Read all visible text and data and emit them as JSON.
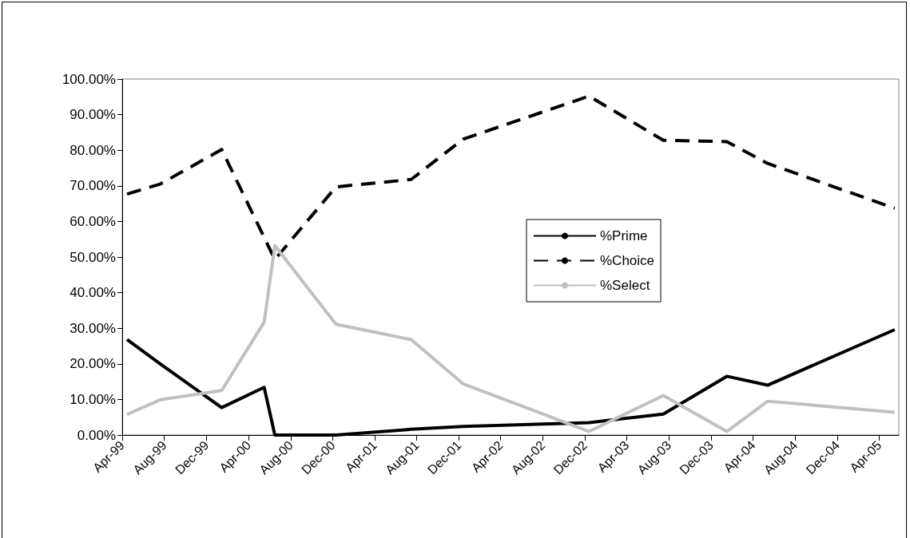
{
  "chart_data": {
    "type": "line",
    "x": [
      "1999-04-15",
      "1999-07-20",
      "2000-01-14",
      "2000-05-16",
      "2000-06-16",
      "2000-12-10",
      "2001-07-16",
      "2001-12-13",
      "2002-12-13",
      "2003-07-16",
      "2004-01-16",
      "2004-05-13",
      "2005-05-16"
    ],
    "series": [
      {
        "name": "%Prime",
        "color": "#000000",
        "line_style": "solid",
        "values": [
          26.8,
          20.0,
          7.7,
          13.4,
          0,
          0,
          1.6,
          2.4,
          3.5,
          5.9,
          16.5,
          14.0,
          29.6
        ]
      },
      {
        "name": "%Choice",
        "color": "#000000",
        "line_style": "dashed",
        "values": [
          67.7,
          70.5,
          80.2,
          55.5,
          49.3,
          69.7,
          71.8,
          83.1,
          95.2,
          82.8,
          82.4,
          76.3,
          63.7
        ]
      },
      {
        "name": "%Select",
        "color": "#c0c0c0",
        "line_style": "solid",
        "values": [
          5.8,
          9.9,
          12.5,
          31.7,
          53.2,
          31.1,
          26.8,
          14.4,
          1.0,
          11.1,
          1.0,
          9.5,
          6.4
        ]
      }
    ],
    "xlim": [
      "1999-04-01",
      "2005-05-28"
    ],
    "xticks": [
      {
        "value": "1999-04-01",
        "label": "Apr-99"
      },
      {
        "value": "1999-08-01",
        "label": "Aug-99"
      },
      {
        "value": "1999-12-01",
        "label": "Dec-99"
      },
      {
        "value": "2000-04-01",
        "label": "Apr-00"
      },
      {
        "value": "2000-08-01",
        "label": "Aug-00"
      },
      {
        "value": "2000-12-01",
        "label": "Dec-00"
      },
      {
        "value": "2001-04-01",
        "label": "Apr-01"
      },
      {
        "value": "2001-08-01",
        "label": "Aug-01"
      },
      {
        "value": "2001-12-01",
        "label": "Dec-01"
      },
      {
        "value": "2002-04-01",
        "label": "Apr-02"
      },
      {
        "value": "2002-08-01",
        "label": "Aug-02"
      },
      {
        "value": "2002-12-01",
        "label": "Dec-02"
      },
      {
        "value": "2003-04-01",
        "label": "Apr-03"
      },
      {
        "value": "2003-08-01",
        "label": "Aug-03"
      },
      {
        "value": "2003-12-01",
        "label": "Dec-03"
      },
      {
        "value": "2004-04-01",
        "label": "Apr-04"
      },
      {
        "value": "2004-08-01",
        "label": "Aug-04"
      },
      {
        "value": "2004-12-01",
        "label": "Dec-04"
      },
      {
        "value": "2005-04-01",
        "label": "Apr-05"
      }
    ],
    "ylim": [
      0,
      100
    ],
    "yticks": [
      {
        "value": 0,
        "label": "0.00%"
      },
      {
        "value": 10,
        "label": "10.00%"
      },
      {
        "value": 20,
        "label": "20.00%"
      },
      {
        "value": 30,
        "label": "30.00%"
      },
      {
        "value": 40,
        "label": "40.00%"
      },
      {
        "value": 50,
        "label": "50.00%"
      },
      {
        "value": 60,
        "label": "60.00%"
      },
      {
        "value": 70,
        "label": "70.00%"
      },
      {
        "value": 80,
        "label": "80.00%"
      },
      {
        "value": 90,
        "label": "90.00%"
      },
      {
        "value": 100,
        "label": "100.00%"
      }
    ],
    "grid": false,
    "legend": "right",
    "marker": "none"
  }
}
